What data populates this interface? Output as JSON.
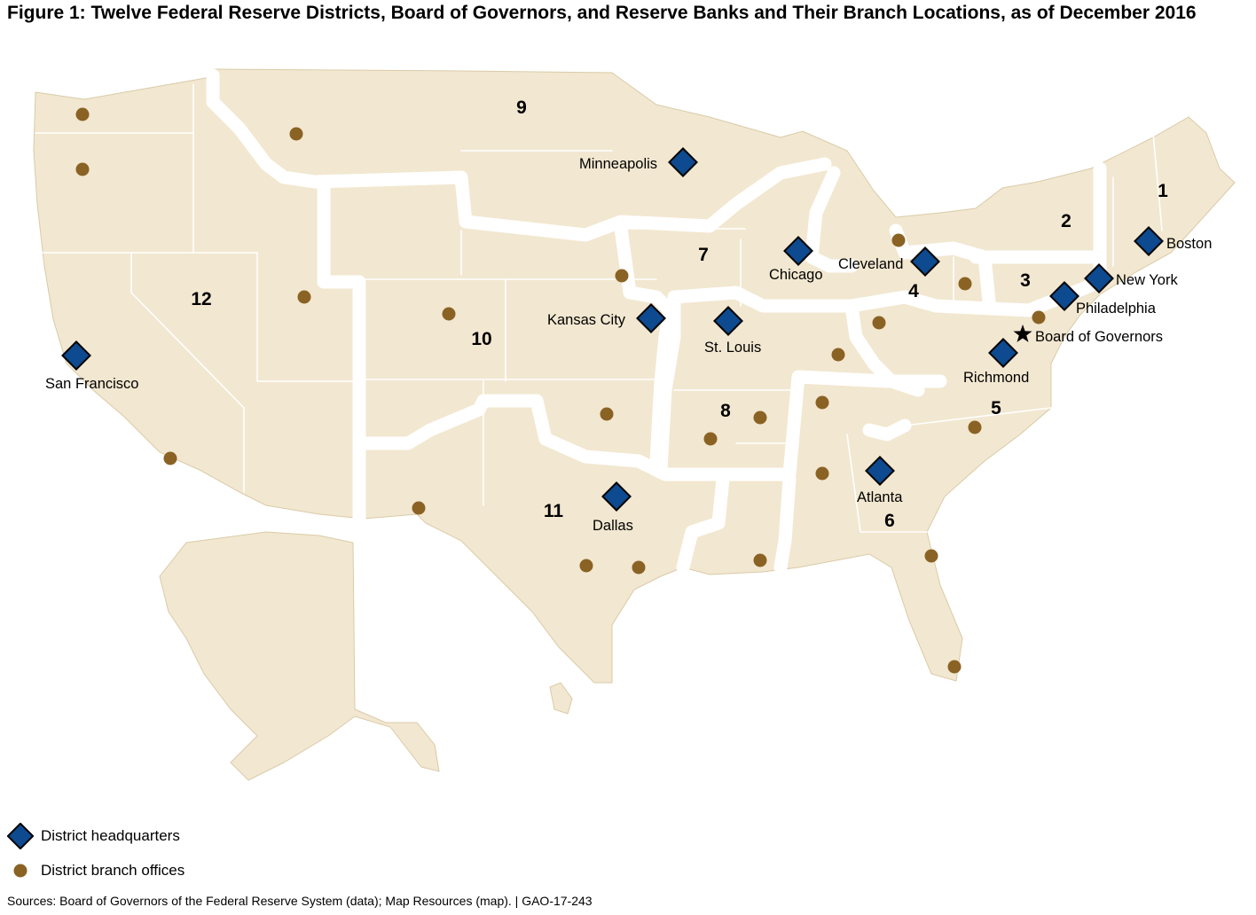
{
  "figure_title": "Figure 1: Twelve Federal Reserve Districts, Board of Governors, and Reserve Banks and Their Branch Locations, as of December 2016",
  "colors": {
    "land": "#f2e7d0",
    "district_border": "#ffffff",
    "headquarters": "#0d4a8f",
    "branch": "#8a6224"
  },
  "districts": [
    "1",
    "2",
    "3",
    "4",
    "5",
    "6",
    "7",
    "8",
    "9",
    "10",
    "11",
    "12"
  ],
  "headquarters": [
    {
      "city": "Boston",
      "district": "1"
    },
    {
      "city": "New York",
      "district": "2"
    },
    {
      "city": "Philadelphia",
      "district": "3"
    },
    {
      "city": "Cleveland",
      "district": "4"
    },
    {
      "city": "Richmond",
      "district": "5"
    },
    {
      "city": "Atlanta",
      "district": "6"
    },
    {
      "city": "Chicago",
      "district": "7"
    },
    {
      "city": "St. Louis",
      "district": "8"
    },
    {
      "city": "Minneapolis",
      "district": "9"
    },
    {
      "city": "Kansas City",
      "district": "10"
    },
    {
      "city": "Dallas",
      "district": "11"
    },
    {
      "city": "San Francisco",
      "district": "12"
    }
  ],
  "board_of_governors": {
    "label": "Board of Governors",
    "icon": "star-icon"
  },
  "branch_office_count": 24,
  "legend": {
    "headquarters_label": "District headquarters",
    "headquarters_icon": "diamond-icon",
    "branch_label": "District branch offices",
    "branch_icon": "dot-icon"
  },
  "source_line": "Sources: Board of Governors of the Federal Reserve System (data); Map Resources (map).  |  GAO-17-243"
}
